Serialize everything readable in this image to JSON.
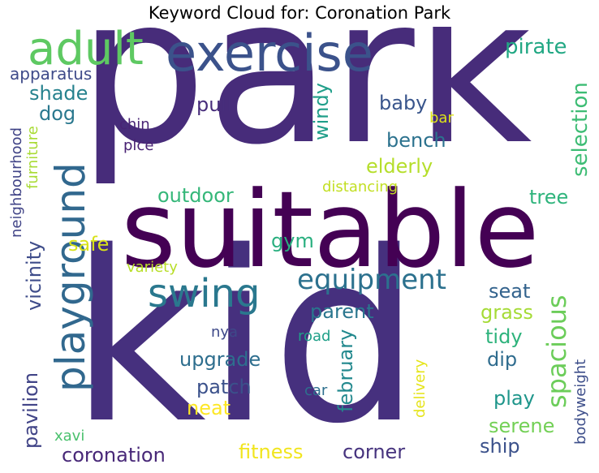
{
  "title": "Keyword Cloud for: Coronation Park",
  "chart_data": {
    "type": "wordcloud",
    "title": "Keyword Cloud for: Coronation Park",
    "words": [
      {
        "text": "park",
        "color": "#472c7a"
      },
      {
        "text": "kid",
        "color": "#46307e"
      },
      {
        "text": "suitable",
        "color": "#440154"
      },
      {
        "text": "exercise",
        "color": "#3b528b"
      },
      {
        "text": "adult",
        "color": "#5ec962"
      },
      {
        "text": "playground",
        "color": "#31688e"
      },
      {
        "text": "swing",
        "color": "#2a788e"
      },
      {
        "text": "equipment",
        "color": "#2c718e"
      },
      {
        "text": "spacious",
        "color": "#6ccd5a"
      },
      {
        "text": "pirate",
        "color": "#22a884"
      },
      {
        "text": "apparatus",
        "color": "#3e4a89"
      },
      {
        "text": "shade",
        "color": "#26828e"
      },
      {
        "text": "dog",
        "color": "#2a788e"
      },
      {
        "text": "pull",
        "color": "#472d7b"
      },
      {
        "text": "baby",
        "color": "#39558c"
      },
      {
        "text": "windy",
        "color": "#1f9e89"
      },
      {
        "text": "bar",
        "color": "#dde318"
      },
      {
        "text": "chin",
        "color": "#482475"
      },
      {
        "text": "plce",
        "color": "#482173"
      },
      {
        "text": "bench",
        "color": "#2c728e"
      },
      {
        "text": "selection",
        "color": "#3dbc74"
      },
      {
        "text": "elderly",
        "color": "#b5de2b"
      },
      {
        "text": "neighbourhood",
        "color": "#414487"
      },
      {
        "text": "furniture",
        "color": "#a8db34"
      },
      {
        "text": "distancing",
        "color": "#c2df23"
      },
      {
        "text": "outdoor",
        "color": "#35b779"
      },
      {
        "text": "tree",
        "color": "#2fb47c"
      },
      {
        "text": "safe",
        "color": "#d8e219"
      },
      {
        "text": "gym",
        "color": "#29af7f"
      },
      {
        "text": "vicinity",
        "color": "#3e4c8a"
      },
      {
        "text": "variety",
        "color": "#b8de29"
      },
      {
        "text": "seat",
        "color": "#33638d"
      },
      {
        "text": "parent",
        "color": "#2a768e"
      },
      {
        "text": "grass",
        "color": "#a5db36"
      },
      {
        "text": "nya",
        "color": "#3e4989"
      },
      {
        "text": "road",
        "color": "#1fa088"
      },
      {
        "text": "tidy",
        "color": "#2eb37c"
      },
      {
        "text": "upgrade",
        "color": "#2e6e8e"
      },
      {
        "text": "february",
        "color": "#23898e"
      },
      {
        "text": "delivery",
        "color": "#e5e419"
      },
      {
        "text": "dip",
        "color": "#2f6c8e"
      },
      {
        "text": "pavilion",
        "color": "#414487"
      },
      {
        "text": "patch",
        "color": "#3b518b"
      },
      {
        "text": "neat",
        "color": "#fde725"
      },
      {
        "text": "car",
        "color": "#2d708e"
      },
      {
        "text": "play",
        "color": "#1f968b"
      },
      {
        "text": "bodyweight",
        "color": "#3d4e8a"
      },
      {
        "text": "serene",
        "color": "#73d056"
      },
      {
        "text": "xavi",
        "color": "#4ac16d"
      },
      {
        "text": "coronation",
        "color": "#482878"
      },
      {
        "text": "fitness",
        "color": "#f1e51d"
      },
      {
        "text": "corner",
        "color": "#46337e"
      },
      {
        "text": "ship",
        "color": "#3b518b"
      }
    ]
  }
}
